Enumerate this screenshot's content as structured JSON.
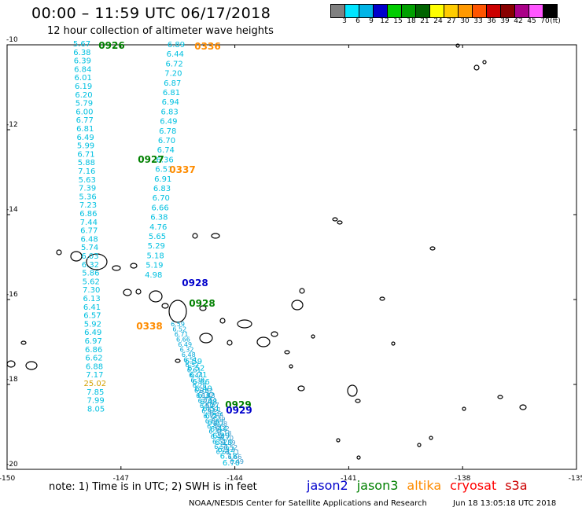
{
  "title": "00:00 – 11:59 UTC 06/17/2018",
  "subtitle": "12 hour collection of altimeter wave heights",
  "legend": {
    "unit": "(ft)",
    "labels": [
      "3",
      "6",
      "9",
      "12",
      "15",
      "18",
      "21",
      "24",
      "27",
      "30",
      "33",
      "36",
      "39",
      "42",
      "45",
      "70"
    ],
    "colors": [
      "#808080",
      "#00e5ff",
      "#00b4e6",
      "#0000cc",
      "#00cc00",
      "#00a000",
      "#006400",
      "#ffff00",
      "#ffcc00",
      "#ff9900",
      "#ff5500",
      "#cc0000",
      "#880000",
      "#aa0088",
      "#ff55ff",
      "#000000"
    ]
  },
  "axes": {
    "lon_labels": [
      -150,
      -147,
      -144,
      -141,
      -138,
      -135
    ],
    "lat_labels": [
      -10,
      -12,
      -14,
      -16,
      -18,
      -20
    ],
    "lon_range": [
      -150,
      -135
    ],
    "lat_range": [
      -20,
      -10
    ]
  },
  "tracks": [
    {
      "sat": "jason3",
      "time": "0926",
      "color": "#008000",
      "labels": [
        "5.67",
        "6.38",
        "6.39",
        "6.84",
        "6.01",
        "6.19",
        "6.20",
        "5.79",
        "6.00",
        "6.77",
        "6.81",
        "6.49",
        "5.99",
        "6.71",
        "5.88",
        "7.16",
        "5.63",
        "7.39",
        "5.36",
        "7.23",
        "6.86",
        "7.44",
        "6.77",
        "6.48",
        "5.74",
        "6.03",
        "6.32",
        "5.86",
        "5.62",
        "7.30",
        "6.13",
        "6.41",
        "6.57",
        "5.92",
        "6.49",
        "6.97",
        "6.86",
        "6.62",
        "6.88",
        "7.17",
        "25.02",
        "7.85",
        "7.99",
        "8.05"
      ]
    },
    {
      "sat": "altika",
      "time": "0336",
      "color": "#ff8c00",
      "labels": [
        "6.89",
        "6.44",
        "6.72",
        "7.20",
        "6.87",
        "6.81",
        "6.94",
        "6.83",
        "6.49",
        "6.78",
        "6.70",
        "6.74",
        "6.36",
        "6.51",
        "6.91",
        "6.83",
        "6.70",
        "6.66",
        "6.38",
        "4.76",
        "5.65",
        "5.29",
        "5.18",
        "5.19",
        "4.98"
      ]
    },
    {
      "sat": "jason3",
      "time": "0927",
      "color": "#008000",
      "labels": []
    },
    {
      "sat": "altika",
      "time": "0337",
      "color": "#ff8c00",
      "labels": []
    },
    {
      "sat": "jason2",
      "time": "0928",
      "color": "#0000cc",
      "labels": []
    },
    {
      "sat": "jason3",
      "time": "0928",
      "color": "#008000",
      "labels": []
    },
    {
      "sat": "altika",
      "time": "0338",
      "color": "#ff8c00",
      "labels": []
    },
    {
      "sat": "jason3",
      "time": "0929",
      "color": "#008000",
      "labels": [
        "6.59",
        "6.52",
        "6.71",
        "6.66",
        "6.49",
        "6.32",
        "6.48",
        "6.51",
        "6.57",
        "6.61",
        "6.44",
        "6.39",
        "6.28",
        "6.32",
        "6.18",
        "6.70"
      ]
    },
    {
      "sat": "jason2",
      "time": "0929",
      "color": "#0000cc",
      "labels": []
    }
  ],
  "note": "note:  1) Time is in UTC;  2) SWH is in feet",
  "satellites": [
    {
      "name": "jason2",
      "color": "#0000cc"
    },
    {
      "name": "jason3",
      "color": "#008000"
    },
    {
      "name": "altika",
      "color": "#ff8c00"
    },
    {
      "name": "cryosat",
      "color": "#ff0000"
    },
    {
      "name": "s3a",
      "color": "#cc0000"
    }
  ],
  "credit": {
    "org": "NOAA/NESDIS Center for Satellite Applications and Research",
    "timestamp": "Jun 18 13:05:18 UTC 2018"
  }
}
